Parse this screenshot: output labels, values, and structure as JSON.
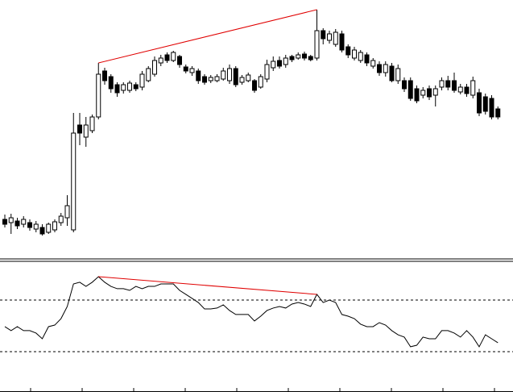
{
  "chart_data": [
    {
      "type": "candlestick",
      "ylim": [
        0,
        320
      ],
      "up_color": "#ffffff",
      "down_color": "#000000",
      "line_color": "#000000",
      "open": [
        48,
        44,
        46,
        42,
        44,
        36,
        38,
        32,
        35,
        44,
        50,
        35,
        165,
        150,
        158,
        175,
        232,
        225,
        215,
        208,
        208,
        215,
        212,
        220,
        228,
        242,
        252,
        245,
        250,
        237,
        230,
        232,
        225,
        220,
        220,
        222,
        220,
        235,
        218,
        220,
        220,
        212,
        222,
        236,
        245,
        240,
        250,
        248,
        253,
        250,
        248,
        282,
        270,
        265,
        278,
        262,
        248,
        245,
        252,
        238,
        240,
        230,
        238,
        220,
        220,
        220,
        210,
        202,
        210,
        202,
        212,
        220,
        220,
        206,
        212,
        202,
        205,
        200,
        198,
        185
      ],
      "high": [
        54,
        55,
        50,
        52,
        48,
        46,
        42,
        44,
        48,
        56,
        78,
        180,
        180,
        175,
        178,
        242,
        236,
        228,
        218,
        218,
        220,
        218,
        232,
        238,
        250,
        252,
        255,
        257,
        252,
        240,
        238,
        235,
        228,
        227,
        228,
        236,
        240,
        238,
        227,
        230,
        222,
        228,
        246,
        250,
        250,
        252,
        252,
        255,
        256,
        252,
        308,
        285,
        282,
        284,
        282,
        265,
        262,
        258,
        255,
        248,
        244,
        244,
        242,
        240,
        224,
        224,
        214,
        212,
        214,
        214,
        224,
        226,
        230,
        216,
        216,
        225,
        210,
        204,
        202,
        188
      ],
      "low": [
        38,
        30,
        36,
        38,
        34,
        32,
        28,
        30,
        32,
        40,
        40,
        32,
        140,
        138,
        155,
        172,
        215,
        205,
        200,
        204,
        205,
        207,
        208,
        218,
        225,
        238,
        242,
        243,
        236,
        229,
        226,
        216,
        215,
        217,
        218,
        220,
        216,
        212,
        215,
        218,
        205,
        210,
        218,
        232,
        235,
        236,
        243,
        246,
        245,
        244,
        245,
        265,
        266,
        262,
        255,
        248,
        245,
        242,
        238,
        235,
        226,
        225,
        218,
        216,
        206,
        195,
        192,
        198,
        196,
        188,
        208,
        208,
        205,
        203,
        200,
        198,
        176,
        178,
        172,
        172
      ],
      "close": [
        42,
        50,
        40,
        48,
        38,
        42,
        30,
        42,
        45,
        52,
        65,
        155,
        155,
        165,
        175,
        228,
        220,
        210,
        205,
        215,
        217,
        210,
        228,
        235,
        245,
        248,
        245,
        255,
        240,
        232,
        235,
        220,
        218,
        224,
        225,
        232,
        235,
        215,
        224,
        227,
        208,
        225,
        240,
        244,
        238,
        248,
        246,
        252,
        248,
        246,
        282,
        272,
        278,
        280,
        258,
        252,
        258,
        255,
        242,
        245,
        230,
        240,
        220,
        235,
        210,
        198,
        195,
        208,
        200,
        210,
        220,
        212,
        208,
        212,
        204,
        220,
        180,
        182,
        175,
        175
      ]
    },
    {
      "type": "line",
      "ylim": [
        0,
        100
      ],
      "levels": [
        70,
        30
      ],
      "color": "#000000",
      "values": [
        49.4,
        46.3,
        49.4,
        46.3,
        46.3,
        44.4,
        40,
        49.4,
        50.6,
        55.6,
        65,
        82.5,
        83.8,
        80.6,
        83.8,
        88.1,
        83.8,
        80.6,
        78.8,
        78.8,
        77.5,
        80.6,
        78.8,
        80.6,
        80.6,
        82.5,
        82.5,
        82.5,
        77.5,
        74.4,
        71.3,
        68.1,
        63.1,
        63.1,
        63.8,
        66.3,
        61.9,
        58.8,
        58.8,
        58.8,
        53.8,
        57.5,
        61.9,
        63.8,
        65,
        63.8,
        66.9,
        68.1,
        66.9,
        65,
        74.4,
        68.1,
        70,
        68.1,
        58.8,
        57.5,
        55.6,
        51.3,
        49.4,
        49.4,
        52.5,
        50.6,
        46.3,
        43.1,
        41.3,
        33.8,
        35,
        41.3,
        40,
        40,
        46.3,
        46.3,
        44.4,
        41.3,
        46.3,
        41.3,
        33.8,
        43.1,
        40,
        36.9
      ]
    }
  ]
}
